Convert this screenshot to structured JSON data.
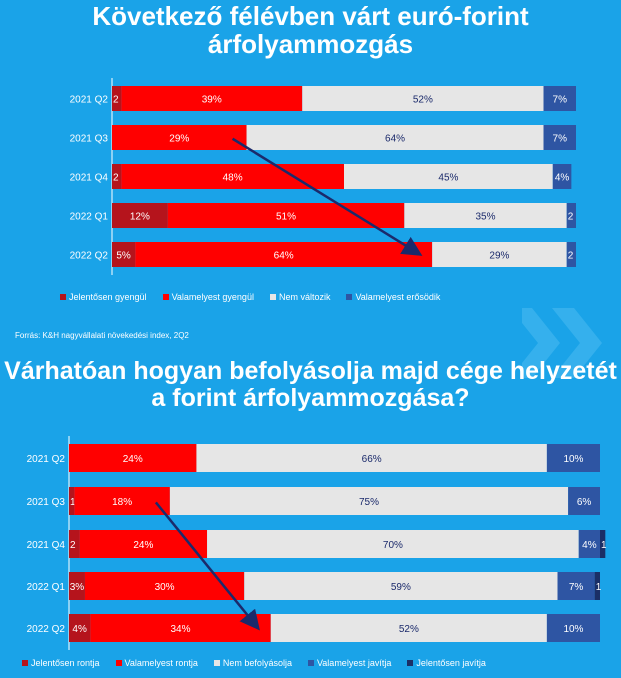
{
  "titles": {
    "chart1": "Következő félévben várt euró-forint árfolyammozgás",
    "chart2": "Várhatóan hogyan befolyásolja majd cége helyzetét a forint árfolyammozgása?"
  },
  "source": "Forrás: K&H nagyvállalati növekedési index, 2Q2",
  "chart_data": [
    {
      "type": "bar",
      "orientation": "horizontal-stacked-100",
      "title": "Következő félévben várt euró-forint árfolyammozgás",
      "categories": [
        "2021 Q2",
        "2021 Q3",
        "2021 Q4",
        "2022 Q1",
        "2022 Q2"
      ],
      "series": [
        {
          "name": "Jelentősen gyengül",
          "color": "#b5141c",
          "values": [
            2,
            0,
            2,
            12,
            5
          ],
          "labels": [
            "2",
            "",
            "2",
            "12%",
            "5%"
          ]
        },
        {
          "name": "Valamelyest gyengül",
          "color": "#ff0000",
          "values": [
            39,
            29,
            48,
            51,
            64
          ],
          "labels": [
            "39%",
            "29%",
            "48%",
            "51%",
            "64%"
          ]
        },
        {
          "name": "Nem változik",
          "color": "#e6e6e6",
          "values": [
            52,
            64,
            45,
            35,
            29
          ],
          "labels": [
            "52%",
            "64%",
            "45%",
            "35%",
            "29%"
          ]
        },
        {
          "name": "Valamelyest erősödik",
          "color": "#2e55a3",
          "values": [
            7,
            7,
            4,
            2,
            2
          ],
          "labels": [
            "7%",
            "7%",
            "4%",
            "2",
            "2"
          ]
        }
      ]
    },
    {
      "type": "bar",
      "orientation": "horizontal-stacked-100",
      "title": "Várhatóan hogyan befolyásolja majd cége helyzetét a forint árfolyammozgása?",
      "categories": [
        "2021 Q2",
        "2021 Q3",
        "2021 Q4",
        "2022 Q1",
        "2022 Q2"
      ],
      "series": [
        {
          "name": "Jelentősen rontja",
          "color": "#b5141c",
          "values": [
            0,
            1,
            2,
            3,
            4
          ],
          "labels": [
            "",
            "1",
            "2",
            "3%",
            "4%"
          ]
        },
        {
          "name": "Valamelyest rontja",
          "color": "#ff0000",
          "values": [
            24,
            18,
            24,
            30,
            34
          ],
          "labels": [
            "24%",
            "18%",
            "24%",
            "30%",
            "34%"
          ]
        },
        {
          "name": "Nem befolyásolja",
          "color": "#e6e6e6",
          "values": [
            66,
            75,
            70,
            59,
            52
          ],
          "labels": [
            "66%",
            "75%",
            "70%",
            "59%",
            "52%"
          ]
        },
        {
          "name": "Valamelyest javítja",
          "color": "#2e55a3",
          "values": [
            10,
            6,
            4,
            7,
            10
          ],
          "labels": [
            "10%",
            "6%",
            "4%",
            "7%",
            "10%"
          ]
        },
        {
          "name": "Jelentősen javítja",
          "color": "#1b2f66",
          "values": [
            0,
            0,
            1,
            1,
            0
          ],
          "labels": [
            "",
            "",
            "1",
            "1",
            ""
          ]
        }
      ]
    }
  ],
  "colors": {
    "background": "#1aa3e8",
    "arrow": "#1b2a6b",
    "label_dark": "#1b2a6b",
    "label_light": "#ffffff"
  }
}
